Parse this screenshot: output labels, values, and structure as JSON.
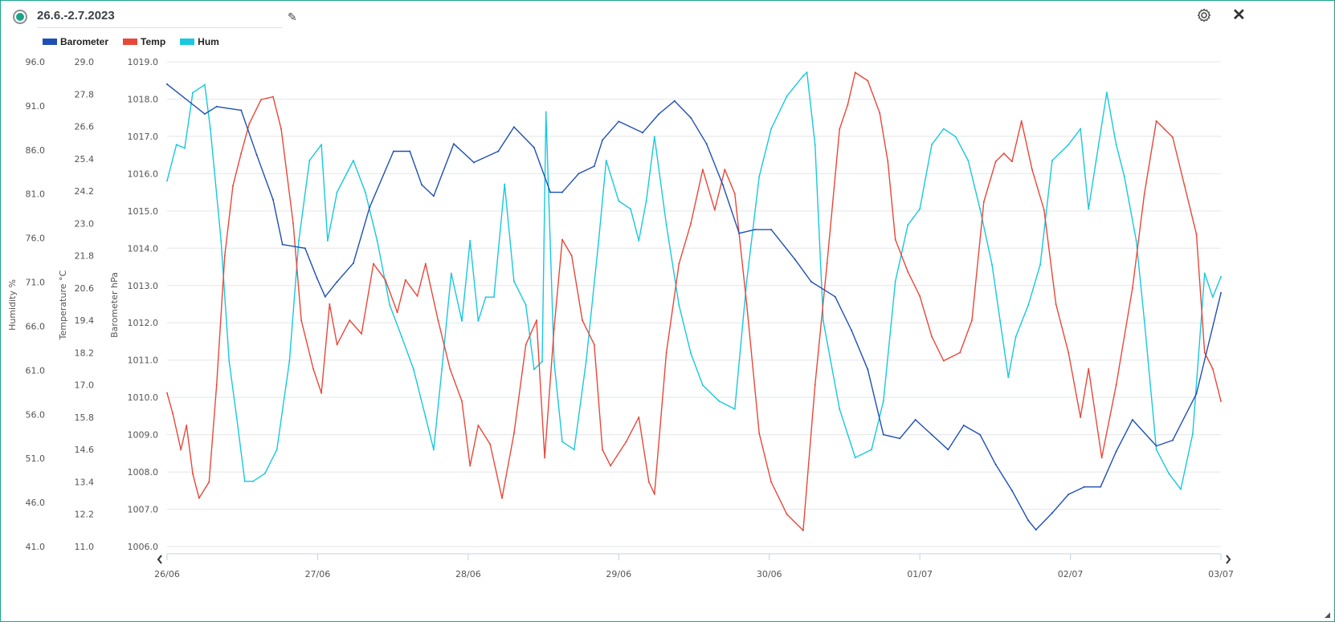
{
  "header": {
    "title": "26.6.-2.7.2023"
  },
  "icons": {
    "status": "radio-on-icon",
    "edit": "pencil-icon",
    "settings": "gear-icon",
    "close": "close-icon",
    "resize": "resize-handle-icon"
  },
  "chart_data": {
    "type": "line",
    "legend": [
      {
        "name": "Barometer",
        "color": "#1f4fb5"
      },
      {
        "name": "Temp",
        "color": "#e8483a"
      },
      {
        "name": "Hum",
        "color": "#17c8e0"
      }
    ],
    "legend_placement": "top-left",
    "x_unit": "hours since 26/06 00:00",
    "xlim": [
      0,
      168
    ],
    "x_ticks": [
      {
        "h": 0,
        "label": "26/06"
      },
      {
        "h": 24,
        "label": "27/06"
      },
      {
        "h": 48,
        "label": "28/06"
      },
      {
        "h": 72,
        "label": "29/06"
      },
      {
        "h": 96,
        "label": "30/06"
      },
      {
        "h": 120,
        "label": "01/07"
      },
      {
        "h": 144,
        "label": "02/07"
      },
      {
        "h": 168,
        "label": "03/07"
      }
    ],
    "axes": {
      "humidity": {
        "title": "Humidity %",
        "ylim": [
          41,
          96
        ],
        "ticks": [
          "96.0",
          "91.0",
          "86.0",
          "81.0",
          "76.0",
          "71.0",
          "66.0",
          "61.0",
          "56.0",
          "51.0",
          "46.0",
          "41.0"
        ]
      },
      "temperature": {
        "title": "Temperature °C",
        "ylim": [
          11,
          29
        ],
        "ticks": [
          "29.0",
          "27.8",
          "26.6",
          "25.4",
          "24.2",
          "23.0",
          "21.8",
          "20.6",
          "19.4",
          "18.2",
          "17.0",
          "15.8",
          "14.6",
          "13.4",
          "12.2",
          "11.0"
        ]
      },
      "barometer": {
        "title": "Barometer hPa",
        "ylim": [
          1006,
          1019
        ],
        "ticks": [
          "1019.0",
          "1018.0",
          "1017.0",
          "1016.0",
          "1015.0",
          "1014.0",
          "1013.0",
          "1012.0",
          "1011.0",
          "1010.0",
          "1009.0",
          "1008.0",
          "1007.0",
          "1006.0"
        ]
      }
    },
    "grid": true,
    "series": [
      {
        "name": "Barometer",
        "axis": "barometer",
        "color": "#1f4fb5",
        "points": [
          [
            0,
            1018.4
          ],
          [
            6,
            1017.6
          ],
          [
            7.9,
            1017.8
          ],
          [
            11.8,
            1017.7
          ],
          [
            14.3,
            1016.5
          ],
          [
            16.9,
            1015.3
          ],
          [
            18.4,
            1014.1
          ],
          [
            22,
            1014.0
          ],
          [
            23.9,
            1013.2
          ],
          [
            25.2,
            1012.7
          ],
          [
            27.1,
            1013.1
          ],
          [
            29.7,
            1013.6
          ],
          [
            32.3,
            1015.1
          ],
          [
            36.1,
            1016.6
          ],
          [
            38.7,
            1016.6
          ],
          [
            40.6,
            1015.7
          ],
          [
            42.5,
            1015.4
          ],
          [
            45.7,
            1016.8
          ],
          [
            48.9,
            1016.3
          ],
          [
            52.8,
            1016.6
          ],
          [
            55.3,
            1017.25
          ],
          [
            58.5,
            1016.7
          ],
          [
            61.1,
            1015.5
          ],
          [
            63,
            1015.5
          ],
          [
            65.6,
            1016.0
          ],
          [
            68.1,
            1016.2
          ],
          [
            69.4,
            1016.9
          ],
          [
            72,
            1017.4
          ],
          [
            75.8,
            1017.1
          ],
          [
            78.4,
            1017.6
          ],
          [
            80.9,
            1017.95
          ],
          [
            83.5,
            1017.5
          ],
          [
            86,
            1016.8
          ],
          [
            88.6,
            1015.7
          ],
          [
            91.2,
            1014.4
          ],
          [
            93.7,
            1014.5
          ],
          [
            96.3,
            1014.5
          ],
          [
            100.1,
            1013.7
          ],
          [
            102.7,
            1013.1
          ],
          [
            106.5,
            1012.7
          ],
          [
            109.1,
            1011.8
          ],
          [
            111.7,
            1010.75
          ],
          [
            114.2,
            1009.0
          ],
          [
            116.8,
            1008.9
          ],
          [
            119.3,
            1009.4
          ],
          [
            121.9,
            1009.0
          ],
          [
            124.5,
            1008.6
          ],
          [
            127,
            1009.25
          ],
          [
            129.6,
            1009.0
          ],
          [
            132.1,
            1008.2
          ],
          [
            134.7,
            1007.5
          ],
          [
            137.3,
            1006.7
          ],
          [
            138.5,
            1006.45
          ],
          [
            141.1,
            1006.9
          ],
          [
            143.7,
            1007.4
          ],
          [
            146.2,
            1007.6
          ],
          [
            148.8,
            1007.6
          ],
          [
            151.3,
            1008.55
          ],
          [
            153.9,
            1009.4
          ],
          [
            157.7,
            1008.7
          ],
          [
            160.3,
            1008.85
          ],
          [
            164.1,
            1010.1
          ],
          [
            168,
            1012.8
          ]
        ]
      },
      {
        "name": "Temp",
        "axis": "temperature",
        "color": "#e8483a",
        "points": [
          [
            0,
            16.7
          ],
          [
            0.9,
            15.95
          ],
          [
            2.2,
            14.6
          ],
          [
            3.1,
            15.5
          ],
          [
            4.1,
            13.7
          ],
          [
            5.1,
            12.8
          ],
          [
            6.7,
            13.4
          ],
          [
            7.9,
            17.0
          ],
          [
            9.2,
            21.8
          ],
          [
            10.5,
            24.4
          ],
          [
            11.8,
            25.6
          ],
          [
            13.1,
            26.7
          ],
          [
            15,
            27.6
          ],
          [
            16.9,
            27.7
          ],
          [
            18.2,
            26.5
          ],
          [
            20.1,
            23.0
          ],
          [
            21.4,
            19.4
          ],
          [
            23.3,
            17.6
          ],
          [
            24.6,
            16.7
          ],
          [
            25.9,
            20.0
          ],
          [
            27.1,
            18.5
          ],
          [
            29.1,
            19.4
          ],
          [
            31,
            18.9
          ],
          [
            32.9,
            21.5
          ],
          [
            34.8,
            20.9
          ],
          [
            36.7,
            19.7
          ],
          [
            38,
            20.9
          ],
          [
            39.9,
            20.3
          ],
          [
            41.2,
            21.5
          ],
          [
            43.2,
            19.4
          ],
          [
            45.1,
            17.6
          ],
          [
            47,
            16.4
          ],
          [
            48.3,
            14.0
          ],
          [
            49.6,
            15.5
          ],
          [
            51.5,
            14.8
          ],
          [
            53.4,
            12.8
          ],
          [
            55.3,
            15.2
          ],
          [
            57.2,
            18.5
          ],
          [
            58.9,
            19.4
          ],
          [
            60.2,
            14.3
          ],
          [
            61.7,
            19.1
          ],
          [
            63,
            22.4
          ],
          [
            64.5,
            21.8
          ],
          [
            66.2,
            19.4
          ],
          [
            68.1,
            18.5
          ],
          [
            69.4,
            14.6
          ],
          [
            70.7,
            14.0
          ],
          [
            73.2,
            14.9
          ],
          [
            75.2,
            15.8
          ],
          [
            76.8,
            13.4
          ],
          [
            77.7,
            12.95
          ],
          [
            79.6,
            18.2
          ],
          [
            81.6,
            21.5
          ],
          [
            83.5,
            23.0
          ],
          [
            85.4,
            25.0
          ],
          [
            87.3,
            23.5
          ],
          [
            88.9,
            25.0
          ],
          [
            90.5,
            24.1
          ],
          [
            92.4,
            20.0
          ],
          [
            94.4,
            15.2
          ],
          [
            96.3,
            13.4
          ],
          [
            98.8,
            12.2
          ],
          [
            101.4,
            11.6
          ],
          [
            103.3,
            17.0
          ],
          [
            105.2,
            21.5
          ],
          [
            107.2,
            26.5
          ],
          [
            108.5,
            27.4
          ],
          [
            109.7,
            28.6
          ],
          [
            111.7,
            28.3
          ],
          [
            113.6,
            27.1
          ],
          [
            114.9,
            25.3
          ],
          [
            116.1,
            22.4
          ],
          [
            118.1,
            21.2
          ],
          [
            120,
            20.3
          ],
          [
            121.9,
            18.8
          ],
          [
            123.8,
            17.9
          ],
          [
            126.4,
            18.2
          ],
          [
            128.3,
            19.4
          ],
          [
            130.2,
            23.8
          ],
          [
            132.1,
            25.3
          ],
          [
            133.4,
            25.6
          ],
          [
            134.7,
            25.3
          ],
          [
            136.2,
            26.8
          ],
          [
            137.9,
            25.0
          ],
          [
            139.8,
            23.5
          ],
          [
            141.7,
            20.0
          ],
          [
            143.7,
            18.2
          ],
          [
            145.6,
            15.8
          ],
          [
            146.9,
            17.6
          ],
          [
            149,
            14.3
          ],
          [
            151.3,
            17.0
          ],
          [
            153.9,
            20.6
          ],
          [
            155.8,
            24.1
          ],
          [
            157.7,
            26.8
          ],
          [
            159,
            26.5
          ],
          [
            160.3,
            26.2
          ],
          [
            162.2,
            24.4
          ],
          [
            164.1,
            22.6
          ],
          [
            165.4,
            18.2
          ],
          [
            166.7,
            17.6
          ],
          [
            168,
            16.4
          ]
        ]
      },
      {
        "name": "Hum",
        "axis": "humidity",
        "color": "#17c8e0",
        "points": [
          [
            0,
            82.5
          ],
          [
            1.5,
            86.6
          ],
          [
            2.8,
            86.2
          ],
          [
            4.1,
            92.5
          ],
          [
            6,
            93.4
          ],
          [
            6.9,
            88.4
          ],
          [
            8.6,
            75.7
          ],
          [
            9.9,
            62.0
          ],
          [
            11.1,
            55.6
          ],
          [
            12.4,
            48.4
          ],
          [
            13.7,
            48.4
          ],
          [
            15.6,
            49.3
          ],
          [
            17.5,
            52.0
          ],
          [
            19.5,
            62.0
          ],
          [
            21,
            75.7
          ],
          [
            22.7,
            84.8
          ],
          [
            24.6,
            86.6
          ],
          [
            25.6,
            75.7
          ],
          [
            27.1,
            81.2
          ],
          [
            29.7,
            84.8
          ],
          [
            31.6,
            81.2
          ],
          [
            33.5,
            75.7
          ],
          [
            35.5,
            68.4
          ],
          [
            37.4,
            64.8
          ],
          [
            39.3,
            61.1
          ],
          [
            41.2,
            55.7
          ],
          [
            42.5,
            52.0
          ],
          [
            43.8,
            61.1
          ],
          [
            45.3,
            72.0
          ],
          [
            47,
            66.6
          ],
          [
            48.3,
            75.7
          ],
          [
            49.6,
            66.6
          ],
          [
            50.8,
            69.3
          ],
          [
            52.1,
            69.3
          ],
          [
            53.8,
            82.1
          ],
          [
            55.3,
            71.1
          ],
          [
            57.2,
            68.4
          ],
          [
            58.5,
            61.1
          ],
          [
            59.8,
            62.0
          ],
          [
            60.4,
            90.3
          ],
          [
            61.7,
            62.0
          ],
          [
            63,
            52.9
          ],
          [
            64.9,
            52.0
          ],
          [
            66.8,
            62.0
          ],
          [
            68.8,
            75.7
          ],
          [
            70,
            84.8
          ],
          [
            72,
            80.2
          ],
          [
            73.9,
            79.3
          ],
          [
            75.2,
            75.7
          ],
          [
            76.4,
            80.2
          ],
          [
            77.7,
            87.5
          ],
          [
            79.6,
            77.5
          ],
          [
            81.6,
            68.4
          ],
          [
            83.5,
            62.9
          ],
          [
            85.4,
            59.3
          ],
          [
            88,
            57.5
          ],
          [
            90.5,
            56.6
          ],
          [
            92.4,
            71.1
          ],
          [
            94.4,
            83.0
          ],
          [
            96.3,
            88.4
          ],
          [
            98.8,
            92.1
          ],
          [
            101.4,
            94.4
          ],
          [
            102,
            94.8
          ],
          [
            103.3,
            86.6
          ],
          [
            104.6,
            66.6
          ],
          [
            107.2,
            56.6
          ],
          [
            109.7,
            51.1
          ],
          [
            112.3,
            52.0
          ],
          [
            114.2,
            57.5
          ],
          [
            116.1,
            71.1
          ],
          [
            118.1,
            77.5
          ],
          [
            120,
            79.3
          ],
          [
            121.9,
            86.6
          ],
          [
            123.8,
            88.4
          ],
          [
            125.7,
            87.5
          ],
          [
            127.7,
            84.8
          ],
          [
            129.6,
            79.3
          ],
          [
            131.5,
            73.0
          ],
          [
            132.8,
            66.6
          ],
          [
            134.1,
            60.2
          ],
          [
            135.3,
            64.8
          ],
          [
            137.3,
            68.4
          ],
          [
            139.2,
            73.0
          ],
          [
            141.1,
            84.8
          ],
          [
            143.7,
            86.6
          ],
          [
            145.6,
            88.4
          ],
          [
            146.9,
            79.3
          ],
          [
            148.1,
            84.8
          ],
          [
            149.8,
            92.5
          ],
          [
            151.3,
            86.6
          ],
          [
            152.6,
            83.0
          ],
          [
            154.5,
            75.7
          ],
          [
            155.8,
            66.6
          ],
          [
            157.7,
            52.0
          ],
          [
            159.7,
            49.3
          ],
          [
            161.6,
            47.5
          ],
          [
            163.5,
            53.8
          ],
          [
            165.4,
            72.0
          ],
          [
            166.7,
            69.3
          ],
          [
            168,
            71.6
          ]
        ]
      }
    ]
  }
}
